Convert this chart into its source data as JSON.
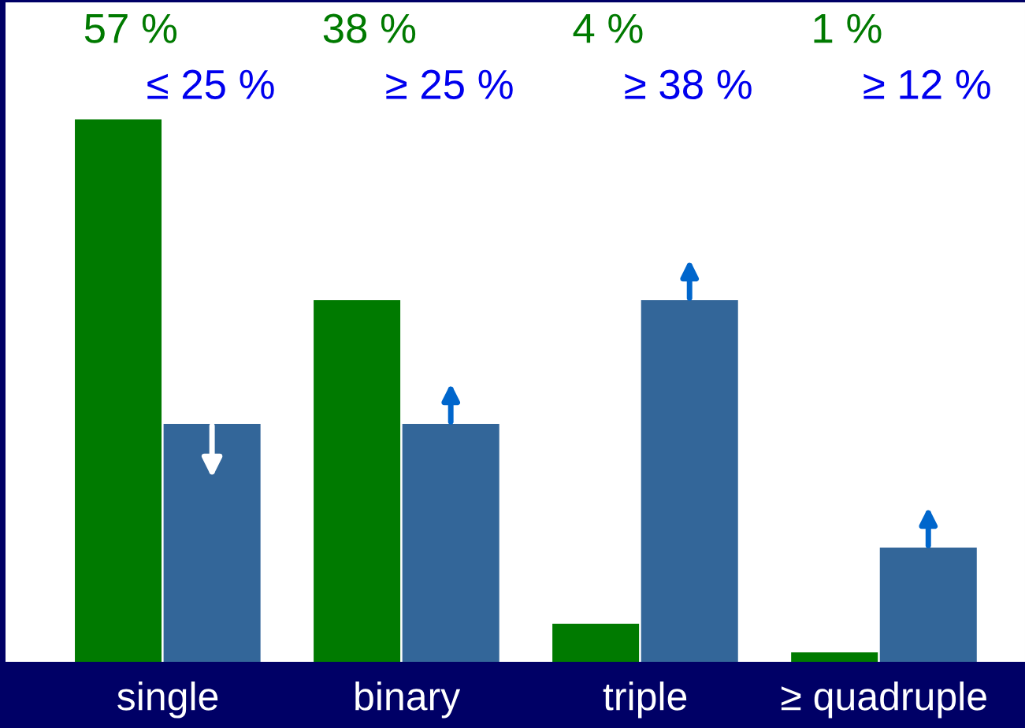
{
  "chart_data": {
    "type": "bar",
    "categories": [
      "single",
      "binary",
      "triple",
      "≥ quadruple"
    ],
    "series": [
      {
        "color": "#007a00",
        "values": [
          57,
          38,
          4,
          1
        ],
        "value_labels": [
          "57 %",
          "38 %",
          "4 %",
          "1 %"
        ]
      },
      {
        "color": "#336699",
        "values": [
          25,
          25,
          38,
          12
        ]
      }
    ],
    "annotations": [
      "≤ 25 %",
      "≥ 25 %",
      "≥ 38 %",
      "≥ 12 %"
    ],
    "grid": false,
    "legend": false,
    "tick_labels": "x"
  }
}
